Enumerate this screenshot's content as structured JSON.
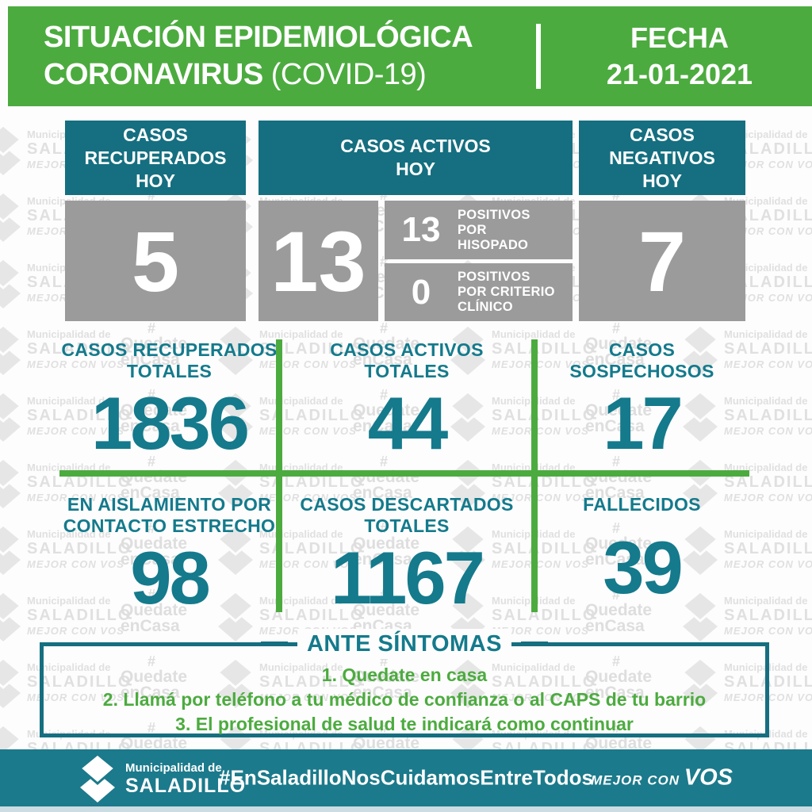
{
  "colors": {
    "green": "#4cab3f",
    "teal": "#156f80",
    "teal_text": "#147a8c",
    "footer_teal": "#1b7a8b",
    "gray_box": "#9b9b9b",
    "watermark_gray": "#e2e2e2",
    "bottom_strip": "#cbdce3",
    "white": "#ffffff"
  },
  "header": {
    "title_line1": "SITUACIÓN EPIDEMIOLÓGICA",
    "title_line2_bold": "CORONAVIRUS",
    "title_line2_light": " (COVID-19)",
    "date_label": "FECHA",
    "date_value": "21-01-2021"
  },
  "today_cards": {
    "recovered": {
      "label_lines": [
        "CASOS",
        "RECUPERADOS",
        "HOY"
      ],
      "value": "5"
    },
    "active": {
      "label_lines": [
        "CASOS ACTIVOS",
        "HOY"
      ],
      "value": "13",
      "breakdown": [
        {
          "value": "13",
          "label_lines": [
            "POSITIVOS",
            "POR",
            "HISOPADO"
          ]
        },
        {
          "value": "0",
          "label_lines": [
            "POSITIVOS",
            "POR CRITERIO",
            "CLÍNICO"
          ]
        }
      ]
    },
    "negative": {
      "label_lines": [
        "CASOS",
        "NEGATIVOS",
        "HOY"
      ],
      "value": "7"
    }
  },
  "totals": [
    {
      "label_lines": [
        "CASOS RECUPERADOS",
        "TOTALES"
      ],
      "value": "1836"
    },
    {
      "label_lines": [
        "CASOS ACTIVOS",
        "TOTALES"
      ],
      "value": "44"
    },
    {
      "label_lines": [
        "CASOS",
        "SOSPECHOSOS"
      ],
      "value": "17"
    },
    {
      "label_lines": [
        "EN AISLAMIENTO POR",
        "CONTACTO ESTRECHO"
      ],
      "value": "98"
    },
    {
      "label_lines": [
        "CASOS DESCARTADOS",
        "TOTALES"
      ],
      "value": "1167"
    },
    {
      "label_lines": [
        "FALLECIDOS"
      ],
      "value": "39"
    }
  ],
  "symptoms_box": {
    "title": "ANTE SÍNTOMAS",
    "items": [
      "1. Quedate en casa",
      "2. Llamá por teléfono a tu médico de confianza o al CAPS de tu barrio",
      "3. El profesional de salud te indicará como continuar"
    ]
  },
  "footer": {
    "logo_icon": "saladillo-double-diamond-logo",
    "org_line1": "Municipalidad de",
    "org_line2": "SALADILLO",
    "hashtag": "#EnSaladilloNosCuidamosEntreTodos",
    "slogan_prefix": "MEJOR CON ",
    "slogan_emphasis": "VOS"
  },
  "watermark": {
    "logo_icon": "saladillo-double-diamond-logo",
    "org_line1": "Municipalidad de",
    "org_line2": "SALADILLO",
    "org_line3": "MEJOR CON VOS",
    "stay_hash": "#",
    "stay_line1": "Quedate",
    "stay_line2": "enCasa"
  }
}
